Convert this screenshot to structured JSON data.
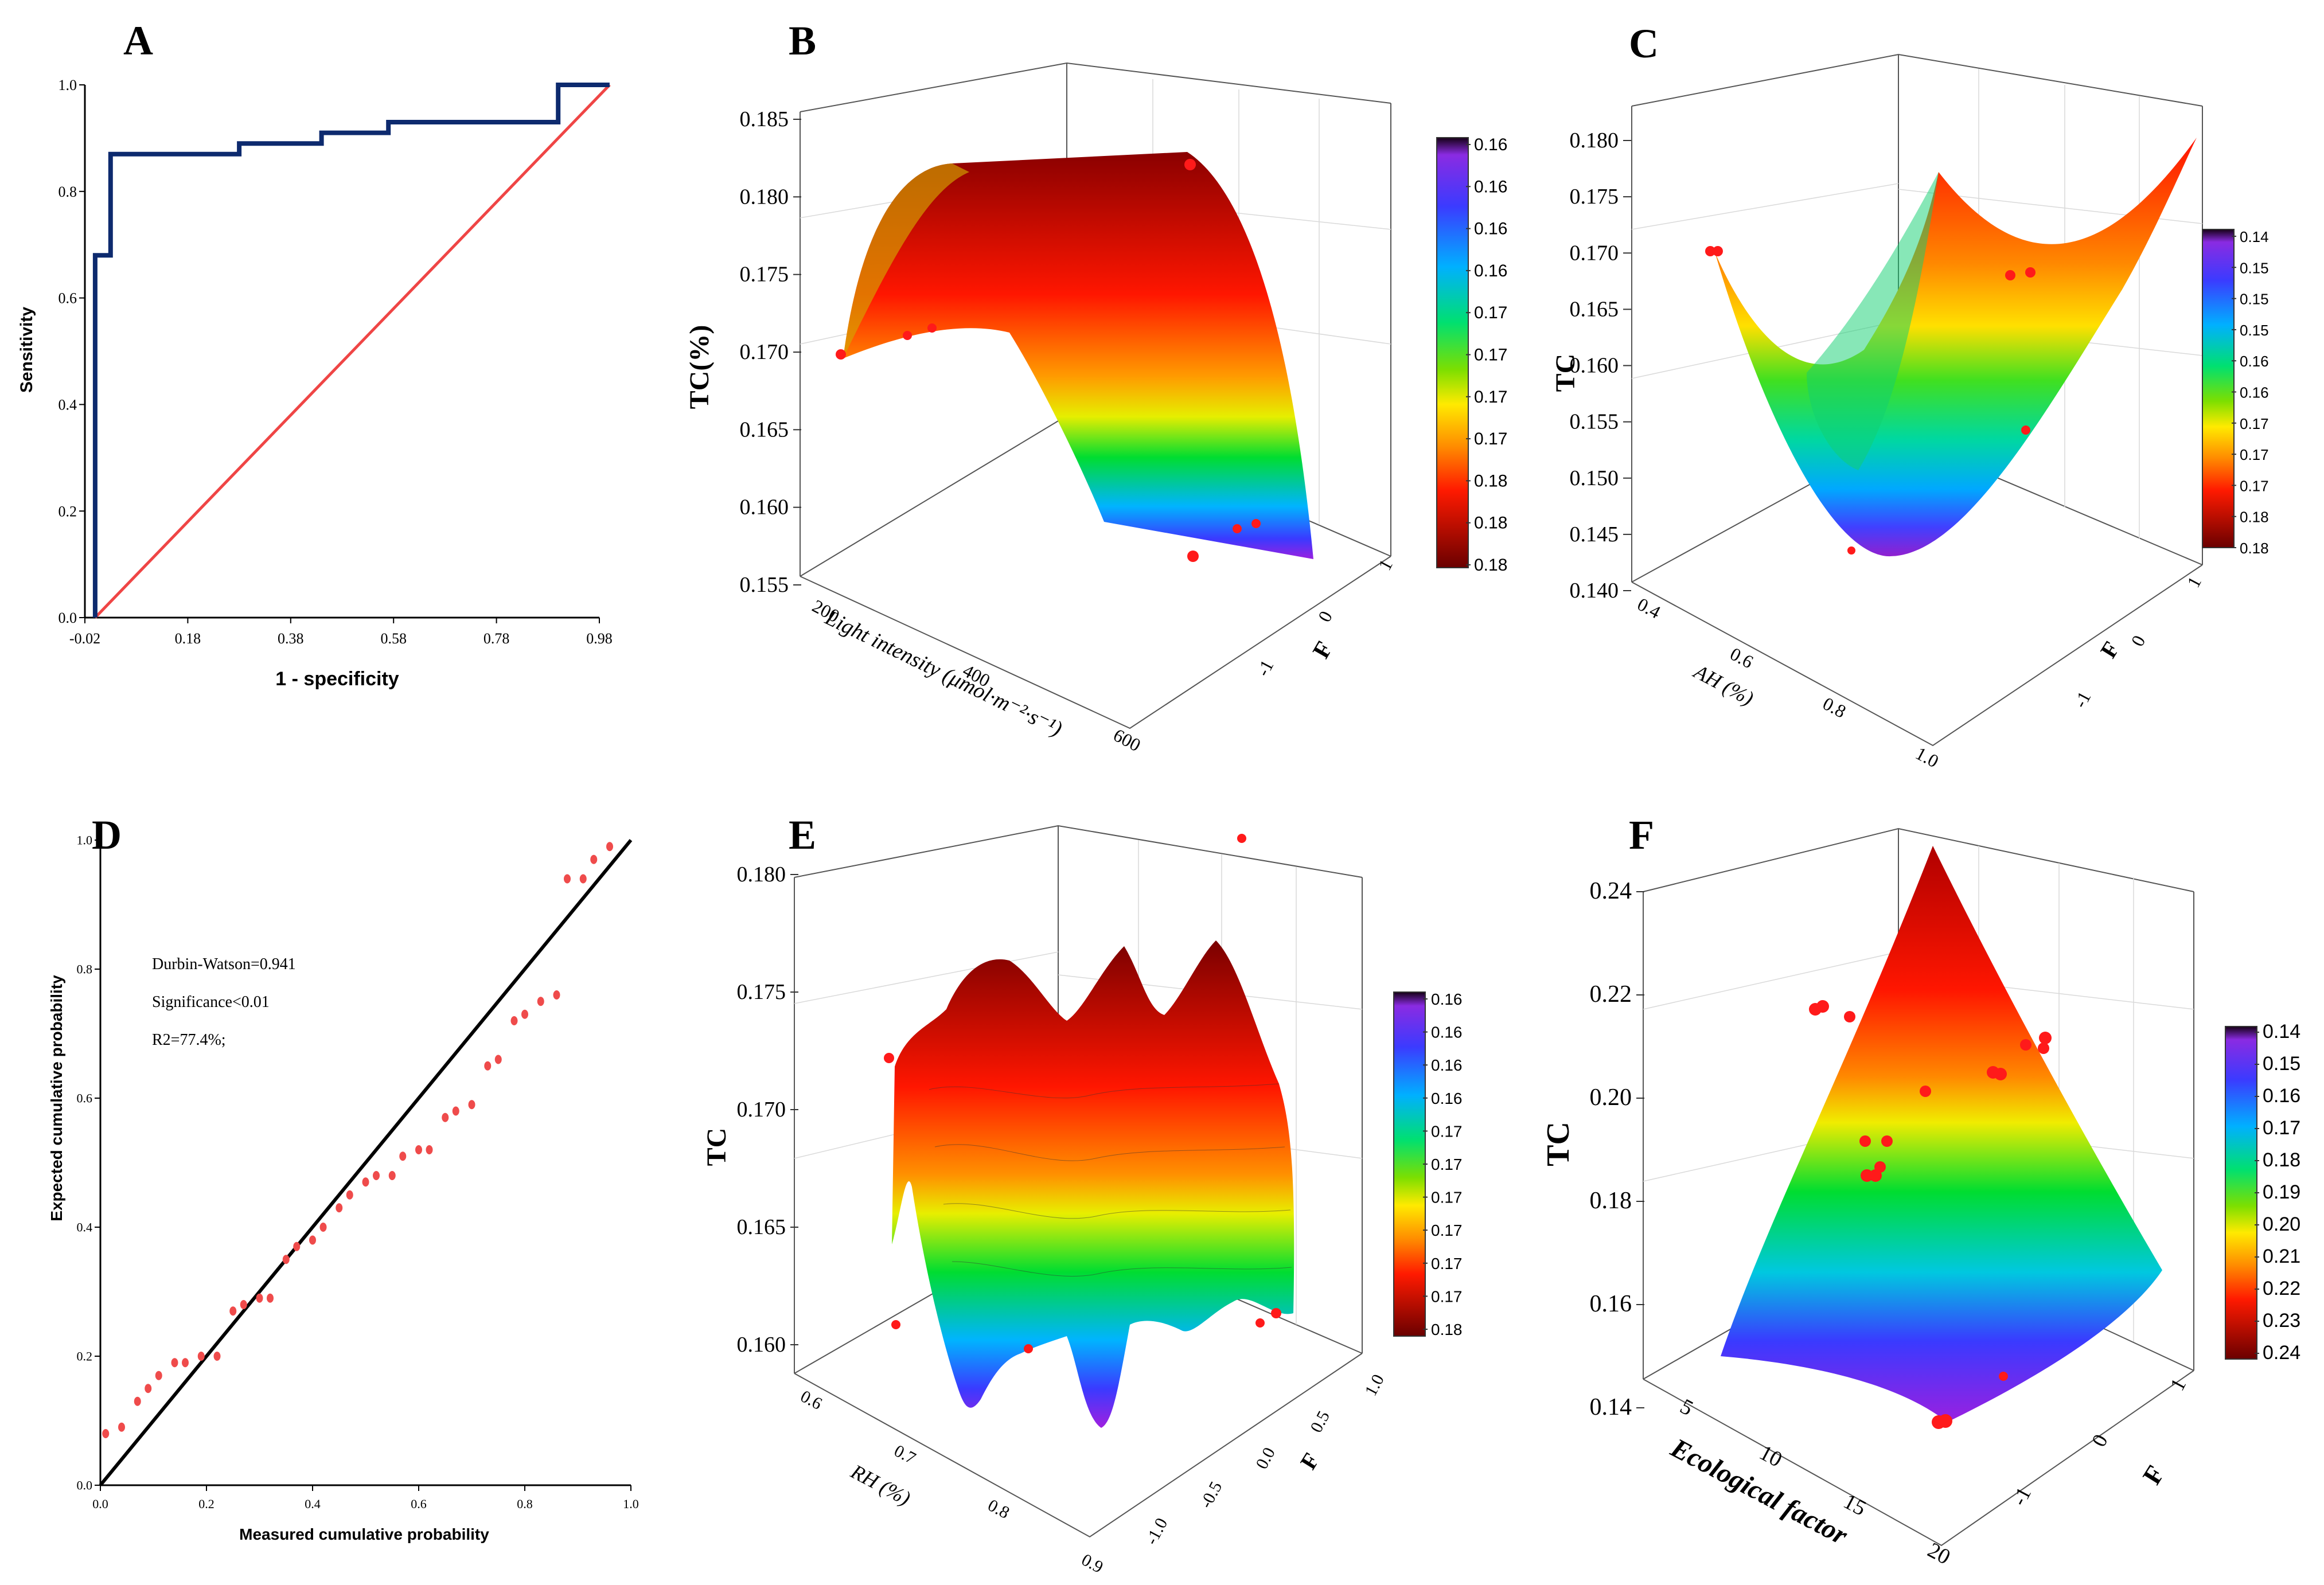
{
  "colors": {
    "roc_curve": "#0d2a6e",
    "reference_line": "#ef4545",
    "points": "#ff1a1a",
    "fit_line": "#000000",
    "qq_points": "#ef4b4b"
  },
  "panels": {
    "A": {
      "letter": "A"
    },
    "B": {
      "letter": "B"
    },
    "C": {
      "letter": "C"
    },
    "D": {
      "letter": "D",
      "annotations": [
        "Durbin-Watson=0.941",
        "Significance<0.01",
        "R2=77.4%;"
      ]
    },
    "E": {
      "letter": "E"
    },
    "F": {
      "letter": "F"
    }
  },
  "chart_data": [
    {
      "id": "A",
      "type": "line",
      "xlabel": "1 - specificity",
      "ylabel": "Sensitivity",
      "xlim": [
        -0.02,
        0.98
      ],
      "ylim": [
        0.0,
        1.0
      ],
      "xticks": [
        "-0.02",
        "0.18",
        "0.38",
        "0.58",
        "0.78",
        "0.98"
      ],
      "yticks": [
        "0.0",
        "0.2",
        "0.4",
        "0.6",
        "0.8",
        "1.0"
      ],
      "grid": false,
      "series": [
        {
          "x": [
            0.0,
            0.0,
            0.03,
            0.03,
            0.28,
            0.28,
            0.44,
            0.44,
            0.57,
            0.57,
            0.9,
            0.9,
            1.0
          ],
          "y": [
            0.0,
            0.68,
            0.68,
            0.87,
            0.87,
            0.89,
            0.89,
            0.91,
            0.91,
            0.93,
            0.93,
            1.0,
            1.0
          ]
        },
        {
          "x": [
            0.0,
            1.0
          ],
          "y": [
            0.0,
            1.0
          ]
        }
      ]
    },
    {
      "id": "B",
      "type": "surface3d",
      "xlabel": "Light intensity (μmol·m⁻²·s⁻¹)",
      "ylabel": "F",
      "zlabel": "TC(%)",
      "zticks": [
        "0.155",
        "0.160",
        "0.165",
        "0.170",
        "0.175",
        "0.180",
        "0.185"
      ],
      "xticks": [
        "200",
        "400",
        "600"
      ],
      "yticks": [
        "-1",
        "0",
        "1"
      ],
      "colorbar_ticks": [
        "0.16",
        "0.16",
        "0.16",
        "0.16",
        "0.17",
        "0.17",
        "0.17",
        "0.17",
        "0.18",
        "0.18",
        "0.18"
      ]
    },
    {
      "id": "C",
      "type": "surface3d",
      "xlabel": "AH (%)",
      "ylabel": "F",
      "zlabel": "TC",
      "zticks": [
        "0.140",
        "0.145",
        "0.150",
        "0.155",
        "0.160",
        "0.165",
        "0.170",
        "0.175",
        "0.180"
      ],
      "xticks": [
        "0.4",
        "0.6",
        "0.8",
        "1.0"
      ],
      "yticks": [
        "-1",
        "0",
        "1"
      ],
      "colorbar_ticks": [
        "0.14",
        "0.15",
        "0.15",
        "0.15",
        "0.16",
        "0.16",
        "0.17",
        "0.17",
        "0.17",
        "0.18",
        "0.18"
      ]
    },
    {
      "id": "D",
      "type": "scatter",
      "xlabel": "Measured cumulative probability",
      "ylabel": "Expected cumulative probability",
      "xlim": [
        0.0,
        1.0
      ],
      "ylim": [
        0.0,
        1.0
      ],
      "xticks": [
        "0.0",
        "0.2",
        "0.4",
        "0.6",
        "0.8",
        "1.0"
      ],
      "yticks": [
        "0.0",
        "0.2",
        "0.4",
        "0.6",
        "0.8",
        "1.0"
      ],
      "grid": false,
      "series": [
        {
          "x": [
            0.01,
            0.04,
            0.07,
            0.09,
            0.11,
            0.14,
            0.16,
            0.19,
            0.22,
            0.25,
            0.27,
            0.3,
            0.32,
            0.35,
            0.37,
            0.4,
            0.42,
            0.45,
            0.47,
            0.5,
            0.52,
            0.55,
            0.57,
            0.6,
            0.62,
            0.65,
            0.67,
            0.7,
            0.73,
            0.75,
            0.78,
            0.8,
            0.83,
            0.86,
            0.88,
            0.91,
            0.93,
            0.96
          ],
          "y": [
            0.08,
            0.09,
            0.13,
            0.15,
            0.17,
            0.19,
            0.19,
            0.2,
            0.2,
            0.27,
            0.28,
            0.29,
            0.29,
            0.35,
            0.37,
            0.38,
            0.4,
            0.43,
            0.45,
            0.47,
            0.48,
            0.48,
            0.51,
            0.52,
            0.52,
            0.57,
            0.58,
            0.59,
            0.65,
            0.66,
            0.72,
            0.73,
            0.75,
            0.76,
            0.94,
            0.94,
            0.97,
            0.99
          ]
        },
        {
          "x": [
            0.0,
            1.0
          ],
          "y": [
            0.0,
            1.0
          ]
        }
      ]
    },
    {
      "id": "E",
      "type": "surface3d",
      "xlabel": "RH (%)",
      "ylabel": "F",
      "zlabel": "TC",
      "zticks": [
        "0.160",
        "0.165",
        "0.170",
        "0.175",
        "0.180"
      ],
      "xticks": [
        "0.6",
        "0.7",
        "0.8",
        "0.9"
      ],
      "yticks": [
        "-1.0",
        "-0.5",
        "0.0",
        "0.5",
        "1.0"
      ],
      "colorbar_ticks": [
        "0.16",
        "0.16",
        "0.16",
        "0.16",
        "0.17",
        "0.17",
        "0.17",
        "0.17",
        "0.17",
        "0.17",
        "0.18"
      ]
    },
    {
      "id": "F",
      "type": "surface3d",
      "xlabel": "Ecological factor",
      "ylabel": "F",
      "zlabel": "TC",
      "zticks": [
        "0.14",
        "0.16",
        "0.18",
        "0.20",
        "0.22",
        "0.24"
      ],
      "xticks": [
        "5",
        "10",
        "15",
        "20"
      ],
      "yticks": [
        "-1",
        "0",
        "1"
      ],
      "colorbar_ticks": [
        "0.14",
        "0.15",
        "0.16",
        "0.17",
        "0.18",
        "0.19",
        "0.20",
        "0.21",
        "0.22",
        "0.23",
        "0.24"
      ]
    }
  ]
}
